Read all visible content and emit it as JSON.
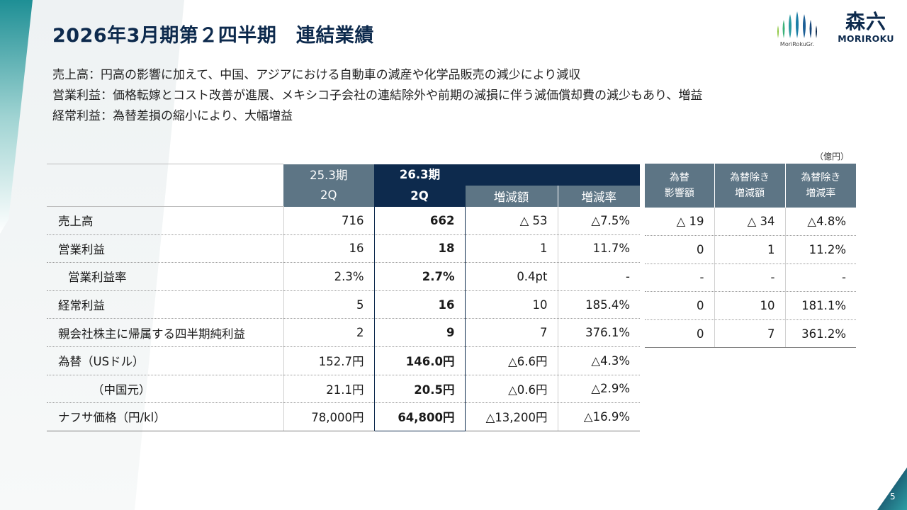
{
  "header": {
    "title": "2026年3月期第２四半期　連結業績",
    "logo_group_caption": "MoriRokuGr.",
    "logo_kanji": "森六",
    "logo_latin": "MORIROKU"
  },
  "summary": [
    "売上高：円高の影響に加えて、中国、アジアにおける自動車の減産や化学品販売の減少により減収",
    "営業利益：価格転嫁とコスト改善が進展、メキシコ子会社の連結除外や前期の減損に伴う減価償却費の減少もあり、増益",
    "経常利益：為替差損の縮小により、大幅増益"
  ],
  "unit": "（億円）",
  "main_table": {
    "header": {
      "prev_period": "25.3期",
      "prev_quarter": "2Q",
      "cur_period": "26.3期",
      "cur_quarter": "2Q",
      "change_amount": "増減額",
      "change_rate": "増減率"
    },
    "rows": [
      {
        "label": "売上高",
        "prev": "716",
        "cur": "662",
        "diff": "△ 53",
        "rate": "△7.5%"
      },
      {
        "label": "営業利益",
        "prev": "16",
        "cur": "18",
        "diff": "1",
        "rate": "11.7%"
      },
      {
        "label": "営業利益率",
        "prev": "2.3%",
        "cur": "2.7%",
        "diff": "0.4pt",
        "rate": "-"
      },
      {
        "label": "経常利益",
        "prev": "5",
        "cur": "16",
        "diff": "10",
        "rate": "185.4%"
      },
      {
        "label": "親会社株主に帰属する四半期純利益",
        "prev": "2",
        "cur": "9",
        "diff": "7",
        "rate": "376.1%"
      },
      {
        "label": "為替（USドル）",
        "prev": "152.7円",
        "cur": "146.0円",
        "diff": "△6.6円",
        "rate": "△4.3%"
      },
      {
        "label": "（中国元）",
        "prev": "21.1円",
        "cur": "20.5円",
        "diff": "△0.6円",
        "rate": "△2.9%"
      },
      {
        "label": "ナフサ価格（円/kl）",
        "prev": "78,000円",
        "cur": "64,800円",
        "diff": "△13,200円",
        "rate": "△16.9%"
      }
    ]
  },
  "fx_table": {
    "header": {
      "fx_impact_1": "為替",
      "fx_impact_2": "影響額",
      "ex_fx_diff_1": "為替除き",
      "ex_fx_diff_2": "増減額",
      "ex_fx_rate_1": "為替除き",
      "ex_fx_rate_2": "増減率"
    },
    "rows": [
      {
        "impact": "△ 19",
        "ex_diff": "△ 34",
        "ex_rate": "△4.8%"
      },
      {
        "impact": "0",
        "ex_diff": "1",
        "ex_rate": "11.2%"
      },
      {
        "impact": "-",
        "ex_diff": "-",
        "ex_rate": "-"
      },
      {
        "impact": "0",
        "ex_diff": "10",
        "ex_rate": "181.1%"
      },
      {
        "impact": "0",
        "ex_diff": "7",
        "ex_rate": "361.2%"
      }
    ]
  },
  "page_number": "5",
  "colors": {
    "navy": "#0d2a4d",
    "header_gray": "#5d7585",
    "teal_accent": "#2a9aa0"
  }
}
